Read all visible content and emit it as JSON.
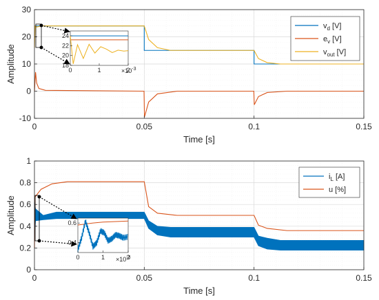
{
  "chart_data": [
    {
      "type": "line",
      "title": "",
      "xlabel": "Time [s]",
      "ylabel": "Amplitude",
      "xlim": [
        0,
        0.15
      ],
      "ylim": [
        -10,
        30
      ],
      "xticks": [
        "0",
        "0.05",
        "0.1",
        "0.15"
      ],
      "yticks": [
        "-10",
        "0",
        "10",
        "20",
        "30"
      ],
      "grid": true,
      "legend_position": "top-right",
      "legend": [
        {
          "main": "v",
          "sub": "d",
          "unit": " [V]"
        },
        {
          "main": "e",
          "sub": "v",
          "unit": " [V]"
        },
        {
          "main": "v",
          "sub": "out",
          "unit": " [V]"
        }
      ],
      "series": [
        {
          "color": "#0072BD",
          "x": [
            0,
            0.05,
            0.05,
            0.1,
            0.1,
            0.15
          ],
          "y": [
            24,
            24,
            15,
            15,
            10,
            10
          ]
        },
        {
          "color": "#D95319",
          "x": [
            0,
            0.0005,
            0.001,
            0.002,
            0.005,
            0.0499,
            0.0501,
            0.052,
            0.056,
            0.065,
            0.0999,
            0.1001,
            0.102,
            0.106,
            0.115,
            0.15
          ],
          "y": [
            0,
            7,
            3,
            1,
            0.3,
            0,
            -9.5,
            -4,
            -1,
            0,
            0,
            -5,
            -2,
            -0.5,
            0,
            0
          ]
        },
        {
          "color": "#EDB120",
          "x": [
            0,
            0.0003,
            0.001,
            0.003,
            0.05,
            0.052,
            0.056,
            0.062,
            0.1,
            0.102,
            0.106,
            0.112,
            0.15
          ],
          "y": [
            16,
            24,
            23.6,
            24,
            24,
            19,
            16,
            15,
            15,
            12,
            10.5,
            10,
            10
          ]
        }
      ],
      "inset": {
        "xlim": [
          0,
          2
        ],
        "ylim": [
          18,
          25
        ],
        "xticks": [
          "0",
          "1",
          "2"
        ],
        "yticks": [
          "24",
          "22",
          "20",
          "18"
        ],
        "exponent": "×10",
        "exponent_power": "-3",
        "series": [
          {
            "color": "#0072BD",
            "x": [
              0,
              2
            ],
            "y": [
              24,
              24
            ]
          },
          {
            "color": "#D95319",
            "x": [
              0,
              2
            ],
            "y": [
              23.2,
              23.2
            ]
          },
          {
            "color": "#EDB120",
            "x": [
              0,
              0.1,
              0.25,
              0.45,
              0.65,
              0.85,
              1.05,
              1.25,
              1.45,
              1.65,
              1.85,
              2.0
            ],
            "y": [
              24,
              18.3,
              22.2,
              19.4,
              22.3,
              20.5,
              21.8,
              21.3,
              20.6,
              21.1,
              20.9,
              21.0
            ]
          }
        ]
      }
    },
    {
      "type": "line",
      "title": "",
      "xlabel": "Time [s]",
      "ylabel": "Amplitude",
      "xlim": [
        0,
        0.15
      ],
      "ylim": [
        0,
        1
      ],
      "xticks": [
        "0",
        "0.05",
        "0.1",
        "0.15"
      ],
      "yticks": [
        "0",
        "0.2",
        "0.4",
        "0.6",
        "0.8",
        "1"
      ],
      "grid": true,
      "legend_position": "top-right",
      "legend": [
        {
          "main": "i",
          "sub": "L",
          "unit": " [A]"
        },
        {
          "main": "u [%]",
          "sub": "",
          "unit": ""
        }
      ],
      "series": [
        {
          "color": "#0072BD",
          "style": "band",
          "x": [
            0,
            0.0005,
            0.004,
            0.01,
            0.05,
            0.052,
            0.056,
            0.062,
            0.1,
            0.102,
            0.106,
            0.112,
            0.15
          ],
          "upper": [
            0.62,
            0.56,
            0.5,
            0.53,
            0.53,
            0.45,
            0.4,
            0.39,
            0.39,
            0.31,
            0.29,
            0.27,
            0.27
          ],
          "lower": [
            0.28,
            0.45,
            0.46,
            0.47,
            0.47,
            0.38,
            0.32,
            0.3,
            0.3,
            0.22,
            0.19,
            0.18,
            0.18
          ]
        },
        {
          "color": "#D95319",
          "x": [
            0,
            0.0003,
            0.003,
            0.008,
            0.015,
            0.05,
            0.052,
            0.056,
            0.065,
            0.1,
            0.102,
            0.106,
            0.115,
            0.15
          ],
          "y": [
            0.2,
            0.67,
            0.74,
            0.79,
            0.81,
            0.81,
            0.58,
            0.52,
            0.5,
            0.5,
            0.41,
            0.38,
            0.36,
            0.36
          ]
        }
      ],
      "inset": {
        "xlim": [
          0,
          2
        ],
        "ylim": [
          0.3,
          0.65
        ],
        "xticks": [
          "0",
          "1",
          "2"
        ],
        "yticks": [
          "0.6",
          "0.4"
        ],
        "exponent": "×10",
        "exponent_power": "-3",
        "series": [
          {
            "color": "#D95319",
            "x": [
              0,
              0.3,
              0.6,
              1.0,
              2.0
            ],
            "y": [
              0.58,
              0.59,
              0.6,
              0.61,
              0.62
            ]
          },
          {
            "color": "#0072BD",
            "x": [
              0,
              0.15,
              0.3,
              0.45,
              0.6,
              0.75,
              0.9,
              1.05,
              1.2,
              1.35,
              1.5,
              1.65,
              1.8,
              2.0
            ],
            "y": [
              0.33,
              0.45,
              0.62,
              0.5,
              0.36,
              0.4,
              0.52,
              0.5,
              0.42,
              0.44,
              0.48,
              0.47,
              0.45,
              0.46
            ],
            "noise": 0.03
          }
        ]
      }
    }
  ]
}
